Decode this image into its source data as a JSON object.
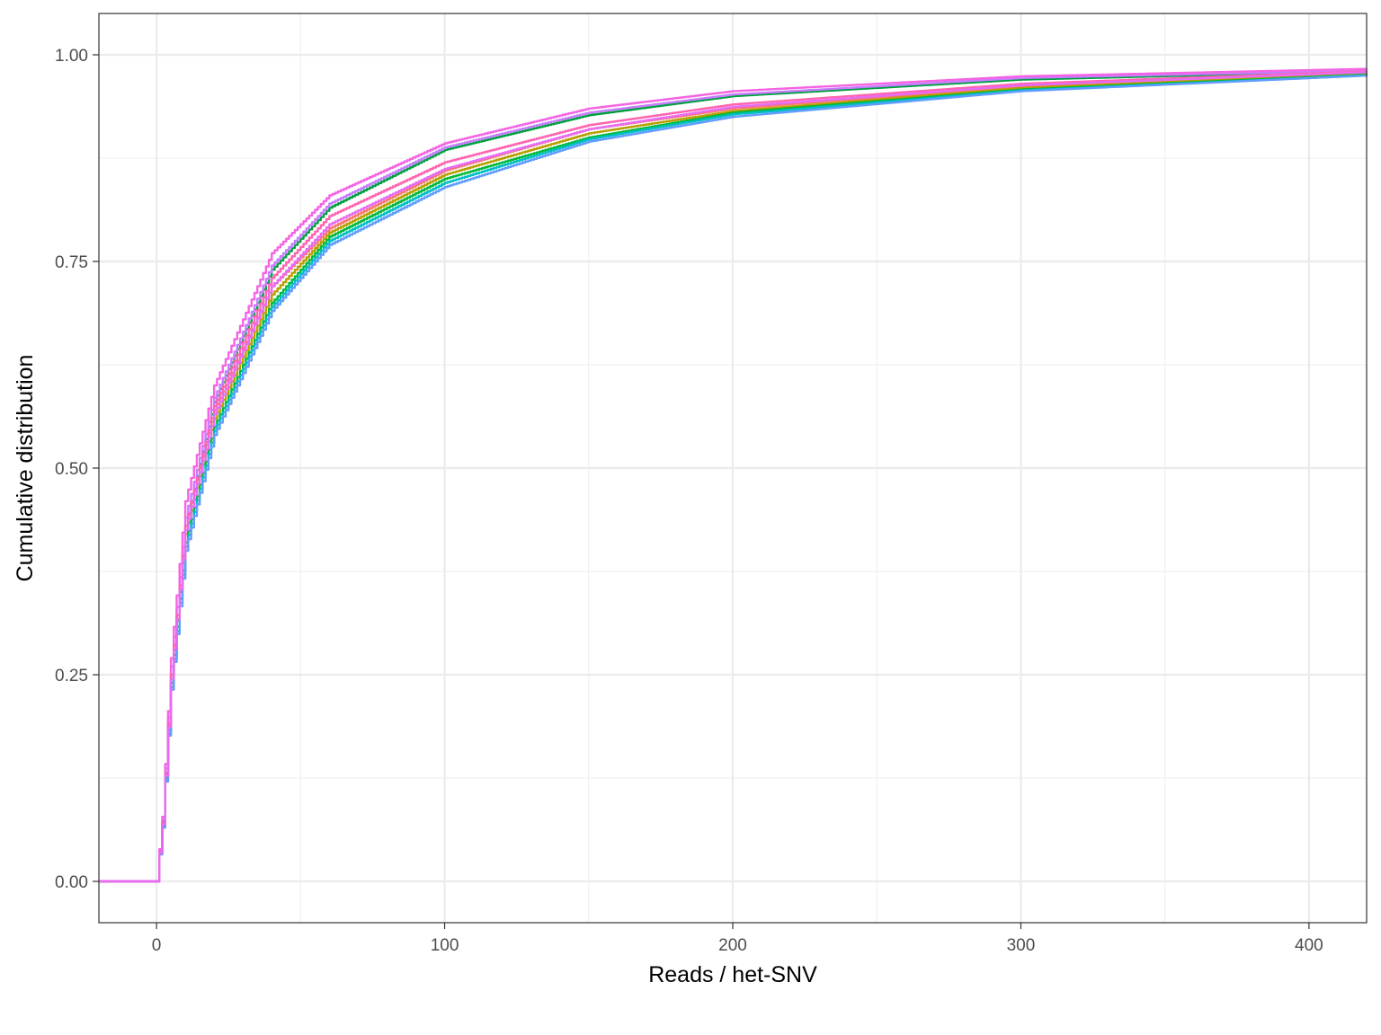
{
  "chart_data": {
    "type": "line",
    "step": true,
    "xlabel": "Reads / het-SNV",
    "ylabel": "Cumulative distribution",
    "xlim": [
      -20,
      420
    ],
    "ylim": [
      -0.05,
      1.05
    ],
    "x_ticks": [
      0,
      100,
      200,
      300,
      400
    ],
    "x_tick_labels": [
      "0",
      "100",
      "200",
      "300",
      "400"
    ],
    "y_ticks": [
      0,
      0.25,
      0.5,
      0.75,
      1.0
    ],
    "y_tick_labels": [
      "0.00",
      "0.25",
      "0.50",
      "0.75",
      "1.00"
    ],
    "grid": true,
    "legend": "none",
    "series": [
      {
        "color": "#F8766D",
        "x": [
          -20,
          0,
          2,
          5,
          10,
          20,
          40,
          60,
          100,
          150,
          200,
          300,
          420
        ],
        "y": [
          0,
          0,
          0.07,
          0.25,
          0.43,
          0.57,
          0.72,
          0.79,
          0.86,
          0.91,
          0.935,
          0.962,
          0.978
        ]
      },
      {
        "color": "#B79F00",
        "x": [
          -20,
          0,
          2,
          5,
          10,
          20,
          40,
          60,
          100,
          150,
          200,
          300,
          420
        ],
        "y": [
          0,
          0,
          0.07,
          0.245,
          0.42,
          0.56,
          0.71,
          0.785,
          0.855,
          0.905,
          0.932,
          0.96,
          0.977
        ]
      },
      {
        "color": "#00BA38",
        "x": [
          -20,
          0,
          2,
          5,
          10,
          20,
          40,
          60,
          100,
          150,
          200,
          300,
          420
        ],
        "y": [
          0,
          0,
          0.068,
          0.24,
          0.41,
          0.55,
          0.7,
          0.78,
          0.85,
          0.9,
          0.93,
          0.958,
          0.976
        ]
      },
      {
        "color": "#00A040",
        "x": [
          -20,
          0,
          2,
          5,
          10,
          20,
          40,
          60,
          100,
          150,
          200,
          300,
          420
        ],
        "y": [
          0,
          0,
          0.072,
          0.25,
          0.43,
          0.58,
          0.74,
          0.815,
          0.885,
          0.927,
          0.95,
          0.97,
          0.98
        ]
      },
      {
        "color": "#00BFC4",
        "x": [
          -20,
          0,
          2,
          5,
          10,
          20,
          40,
          60,
          100,
          150,
          200,
          300,
          420
        ],
        "y": [
          0,
          0,
          0.066,
          0.235,
          0.405,
          0.545,
          0.695,
          0.775,
          0.845,
          0.898,
          0.928,
          0.957,
          0.975
        ]
      },
      {
        "color": "#619CFF",
        "x": [
          -20,
          0,
          2,
          5,
          10,
          20,
          40,
          60,
          100,
          150,
          200,
          300,
          420
        ],
        "y": [
          0,
          0,
          0.065,
          0.232,
          0.4,
          0.54,
          0.69,
          0.77,
          0.84,
          0.895,
          0.925,
          0.956,
          0.975
        ]
      },
      {
        "color": "#C77CFF",
        "x": [
          -20,
          0,
          2,
          5,
          10,
          20,
          40,
          60,
          100,
          150,
          200,
          300,
          420
        ],
        "y": [
          0,
          0,
          0.075,
          0.26,
          0.44,
          0.585,
          0.745,
          0.82,
          0.888,
          0.93,
          0.952,
          0.972,
          0.981
        ]
      },
      {
        "color": "#F564E3",
        "x": [
          -20,
          0,
          2,
          5,
          10,
          20,
          40,
          60,
          100,
          150,
          200,
          300,
          420
        ],
        "y": [
          0,
          0,
          0.078,
          0.27,
          0.46,
          0.6,
          0.76,
          0.83,
          0.893,
          0.935,
          0.956,
          0.974,
          0.983
        ]
      },
      {
        "color": "#FF64B0",
        "x": [
          -20,
          0,
          2,
          5,
          10,
          20,
          40,
          60,
          100,
          150,
          200,
          300,
          420
        ],
        "y": [
          0,
          0,
          0.07,
          0.25,
          0.43,
          0.575,
          0.73,
          0.805,
          0.87,
          0.915,
          0.94,
          0.965,
          0.98
        ]
      },
      {
        "color": "#E76BF3",
        "x": [
          -20,
          0,
          2,
          5,
          10,
          20,
          40,
          60,
          100,
          150,
          200,
          300,
          420
        ],
        "y": [
          0,
          0,
          0.069,
          0.245,
          0.425,
          0.565,
          0.72,
          0.795,
          0.862,
          0.91,
          0.937,
          0.963,
          0.979
        ]
      }
    ]
  }
}
